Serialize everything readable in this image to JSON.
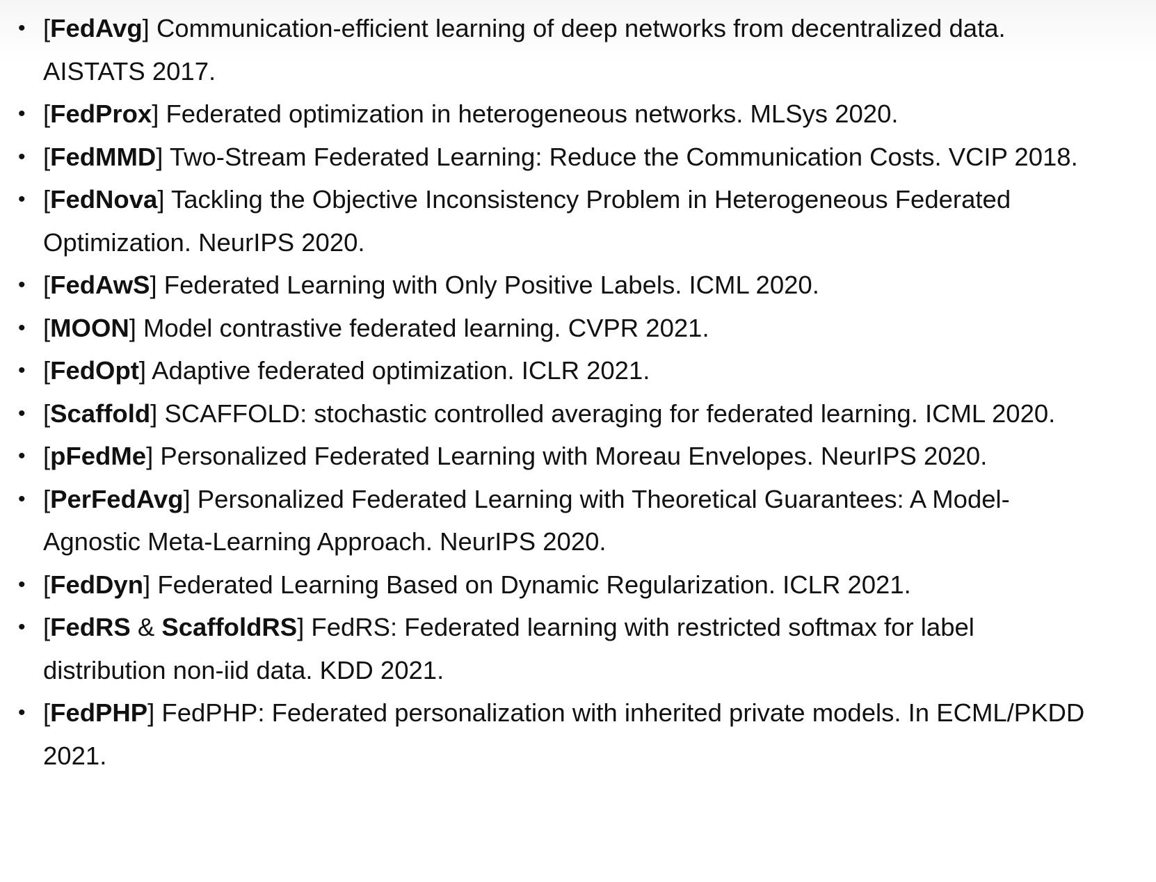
{
  "references": [
    {
      "keys": [
        "FedAvg"
      ],
      "text": "Communication-efficient learning of deep networks from decentralized data. AISTATS 2017."
    },
    {
      "keys": [
        "FedProx"
      ],
      "text": "Federated optimization in heterogeneous networks. MLSys 2020."
    },
    {
      "keys": [
        "FedMMD"
      ],
      "text": "Two-Stream Federated Learning: Reduce the Communication Costs. VCIP 2018."
    },
    {
      "keys": [
        "FedNova"
      ],
      "text": "Tackling the Objective Inconsistency Problem in Heterogeneous Federated Optimization. NeurIPS 2020."
    },
    {
      "keys": [
        "FedAwS"
      ],
      "text": "Federated Learning with Only Positive Labels. ICML 2020."
    },
    {
      "keys": [
        "MOON"
      ],
      "text": "Model contrastive federated learning. CVPR 2021."
    },
    {
      "keys": [
        "FedOpt"
      ],
      "text": "Adaptive federated optimization. ICLR 2021."
    },
    {
      "keys": [
        "Scaffold"
      ],
      "text": "SCAFFOLD: stochastic controlled averaging for federated learning. ICML 2020."
    },
    {
      "keys": [
        "pFedMe"
      ],
      "text": "Personalized Federated Learning with Moreau Envelopes. NeurIPS 2020."
    },
    {
      "keys": [
        "PerFedAvg"
      ],
      "text": "Personalized Federated Learning with Theoretical Guarantees: A Model-Agnostic Meta-Learning Approach. NeurIPS 2020."
    },
    {
      "keys": [
        "FedDyn"
      ],
      "text": "Federated Learning Based on Dynamic Regularization. ICLR 2021."
    },
    {
      "keys": [
        "FedRS",
        "ScaffoldRS"
      ],
      "joiner": " & ",
      "text": "FedRS: Federated learning with restricted softmax for label distribution non-iid data. KDD 2021."
    },
    {
      "keys": [
        "FedPHP"
      ],
      "text": "FedPHP: Federated personalization with inherited private models. In ECML/PKDD 2021."
    }
  ]
}
